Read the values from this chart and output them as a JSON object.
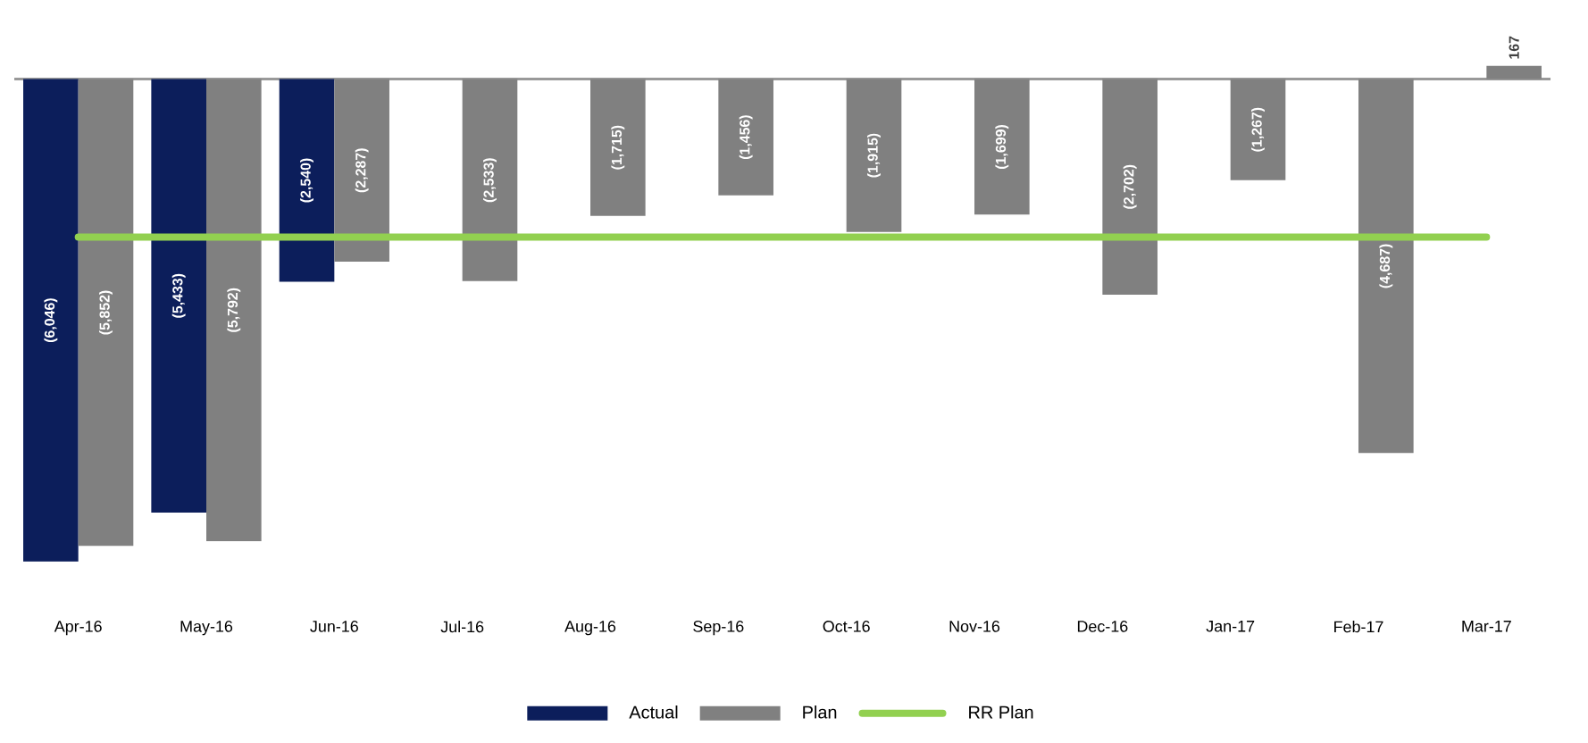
{
  "chart_data": {
    "type": "bar",
    "legend": "bottom",
    "categories": [
      "Apr-16",
      "May-16",
      "Jun-16",
      "Jul-16",
      "Aug-16",
      "Sep-16",
      "Oct-16",
      "Nov-16",
      "Dec-16",
      "Jan-17",
      "Feb-17",
      "Mar-17"
    ],
    "series": [
      {
        "name": "Actual",
        "color": "#0c1e5b",
        "values": [
          -6046,
          -5433,
          -2540,
          null,
          null,
          null,
          null,
          null,
          null,
          null,
          null,
          null
        ],
        "value_labels": [
          "(6,046)",
          "(5,433)",
          "(2,540)",
          null,
          null,
          null,
          null,
          null,
          null,
          null,
          null,
          null
        ]
      },
      {
        "name": "Plan",
        "color": "#808080",
        "values": [
          -5852,
          -5792,
          -2287,
          -2533,
          -1715,
          -1456,
          -1915,
          -1699,
          -2702,
          -1267,
          -4687,
          167
        ],
        "value_labels": [
          "(5,852)",
          "(5,792)",
          "(2,287)",
          "(2,533)",
          "(1,715)",
          "(1,456)",
          "(1,915)",
          "(1,699)",
          "(2,702)",
          "(1,267)",
          "(4,687)",
          "167"
        ]
      },
      {
        "name": "RR Plan",
        "type": "line",
        "color": "#92d050",
        "values": [
          -1980,
          -1980,
          -1980,
          -1980,
          -1980,
          -1980,
          -1980,
          -1980,
          -1980,
          -1980,
          -1980,
          -1980
        ]
      }
    ]
  }
}
